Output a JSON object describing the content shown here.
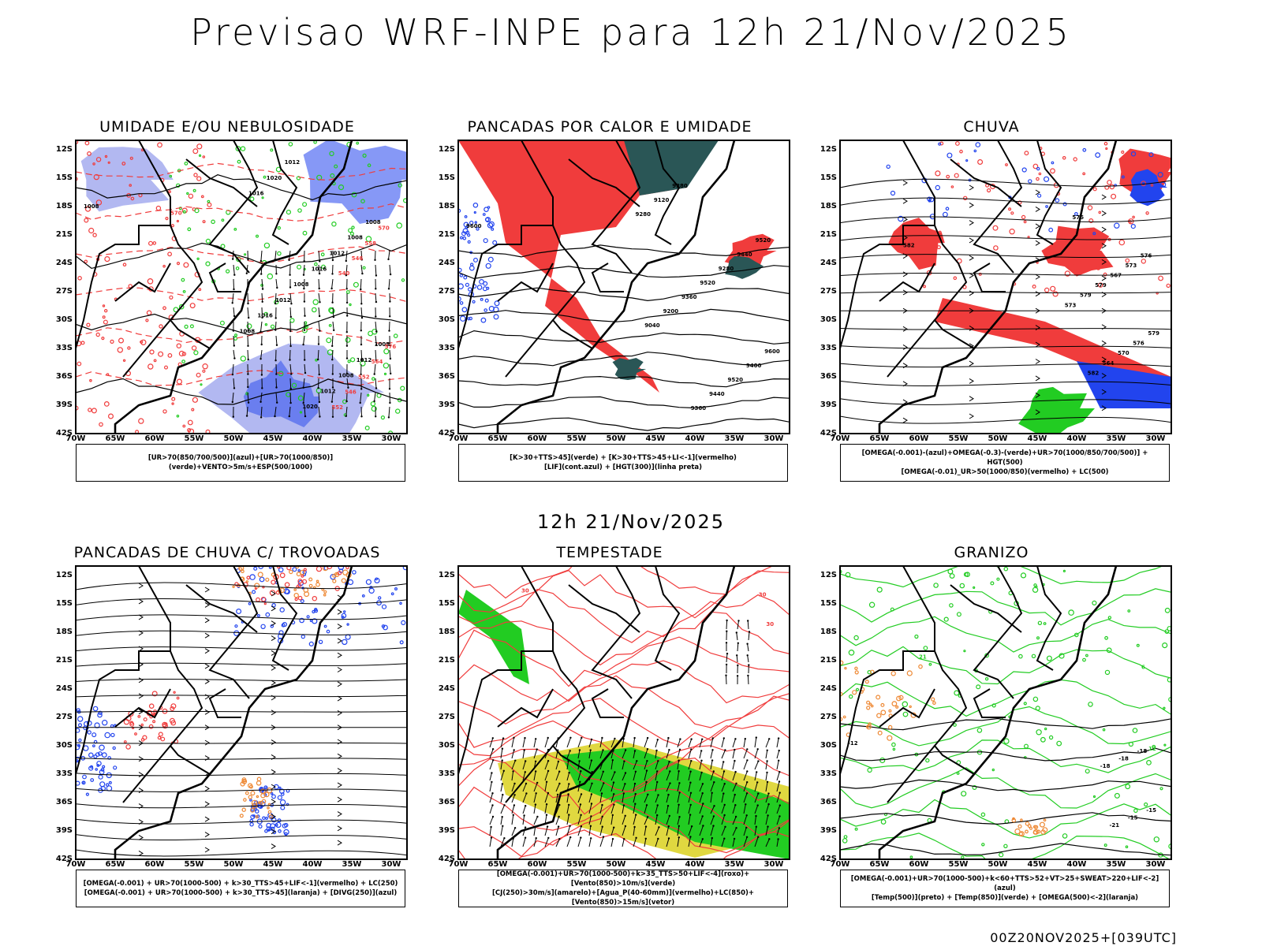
{
  "title": "Previsao WRF-INPE  para 12h 21/Nov/2025",
  "mid_date": "12h 21/Nov/2025",
  "footer": "00Z20NOV2025+[039UTC]",
  "axes": {
    "lat_labels": [
      "12S",
      "15S",
      "18S",
      "21S",
      "24S",
      "27S",
      "30S",
      "33S",
      "36S",
      "39S",
      "42S"
    ],
    "lon_labels": [
      "70W",
      "65W",
      "60W",
      "55W",
      "50W",
      "45W",
      "40W",
      "35W",
      "30W"
    ]
  },
  "colors": {
    "red": "#f03c3c",
    "green": "#22cc22",
    "blue": "#2244ee",
    "lavender": "#aab0f0",
    "dark_teal": "#2a5656",
    "yellow": "#e0d840",
    "orange": "#ee8833",
    "purple": "#cc33cc"
  },
  "panels": [
    {
      "title": "UMIDADE E/OU NEBULOSIDADE",
      "legend": [
        "[UR>70(850/700/500)](azul)+[UR>70(1000/850)](verde)+VENTO>5m/s+ESP(500/1000)"
      ],
      "contour_labels_black": [
        "1008",
        "1008",
        "1008",
        "1012",
        "1008",
        "1008",
        "1012",
        "1012",
        "1016",
        "1020",
        "1008",
        "1012",
        "1012",
        "1020",
        "1016",
        "1016",
        "1008"
      ],
      "contour_labels_red": [
        "570",
        "576",
        "570",
        "564",
        "558",
        "552",
        "546",
        "546",
        "540",
        "552"
      ]
    },
    {
      "title": "PANCADAS POR CALOR E UMIDADE",
      "legend": [
        "[K>30+TTS>45](verde) + [K>30+TTS>45+LI<-1](vermelho)",
        "[LIF](cont.azul) + [HGT(300)](linha preta)"
      ],
      "contour_labels_black": [
        "9600",
        "9600",
        "9520",
        "9400",
        "9440",
        "9520",
        "9280",
        "9440",
        "9520",
        "9360",
        "9360",
        "9280",
        "9200",
        "9120",
        "9040",
        "9280"
      ]
    },
    {
      "title": "CHUVA",
      "legend": [
        "[OMEGA(-0.001)-(azul)+OMEGA(-0.3)-(verde)+UR>70(1000/850/700/500)] + HGT(500)",
        "[OMEGA(-0.01)_UR>50(1000/850)(vermelho) + LC(500)"
      ],
      "contour_labels_black": [
        "582",
        "579",
        "576",
        "576",
        "573",
        "570",
        "567",
        "564",
        "579",
        "582",
        "579",
        "576",
        "573"
      ]
    },
    {
      "title": "PANCADAS DE CHUVA C/ TROVOADAS",
      "legend": [
        "[OMEGA(-0.001) + UR>70(1000-500) + k>30_TTS>45+LIF<-1](vermelho) + LC(250)",
        "[OMEGA(-0.001) + UR>70(1000-500) + k>30_TTS>45](laranja) + [DIVG(250)](azul)"
      ]
    },
    {
      "title": "TEMPESTADE",
      "legend": [
        "[OMEGA(-0.001)+UR>70(1000-500)+k>35_TTS>50+LIF<-4](roxo)+[Vento(850)>10m/s](verde)",
        "[CJ(250)>30m/s](amarelo)+[Agua_P(40-60mm)](vermelho)+LC(850)+[Vento(850)>15m/s](vetor)"
      ],
      "contour_labels_red": [
        "30",
        "30",
        "30"
      ]
    },
    {
      "title": "GRANIZO",
      "legend": [
        "[OMEGA(-0.001)+UR>70(1000-500)+k<60+TTS>52+VT>25+SWEAT>220+LIF<-2](azul)",
        "[Temp(500)](preto) + [Temp(850)](verde) + [OMEGA(500)<-2](laranja)"
      ],
      "contour_labels_black": [
        "-12",
        "-15",
        "-18",
        "-15",
        "-18",
        "-21",
        "-18"
      ],
      "contour_labels_green": [
        "21",
        "12",
        "6"
      ]
    }
  ]
}
